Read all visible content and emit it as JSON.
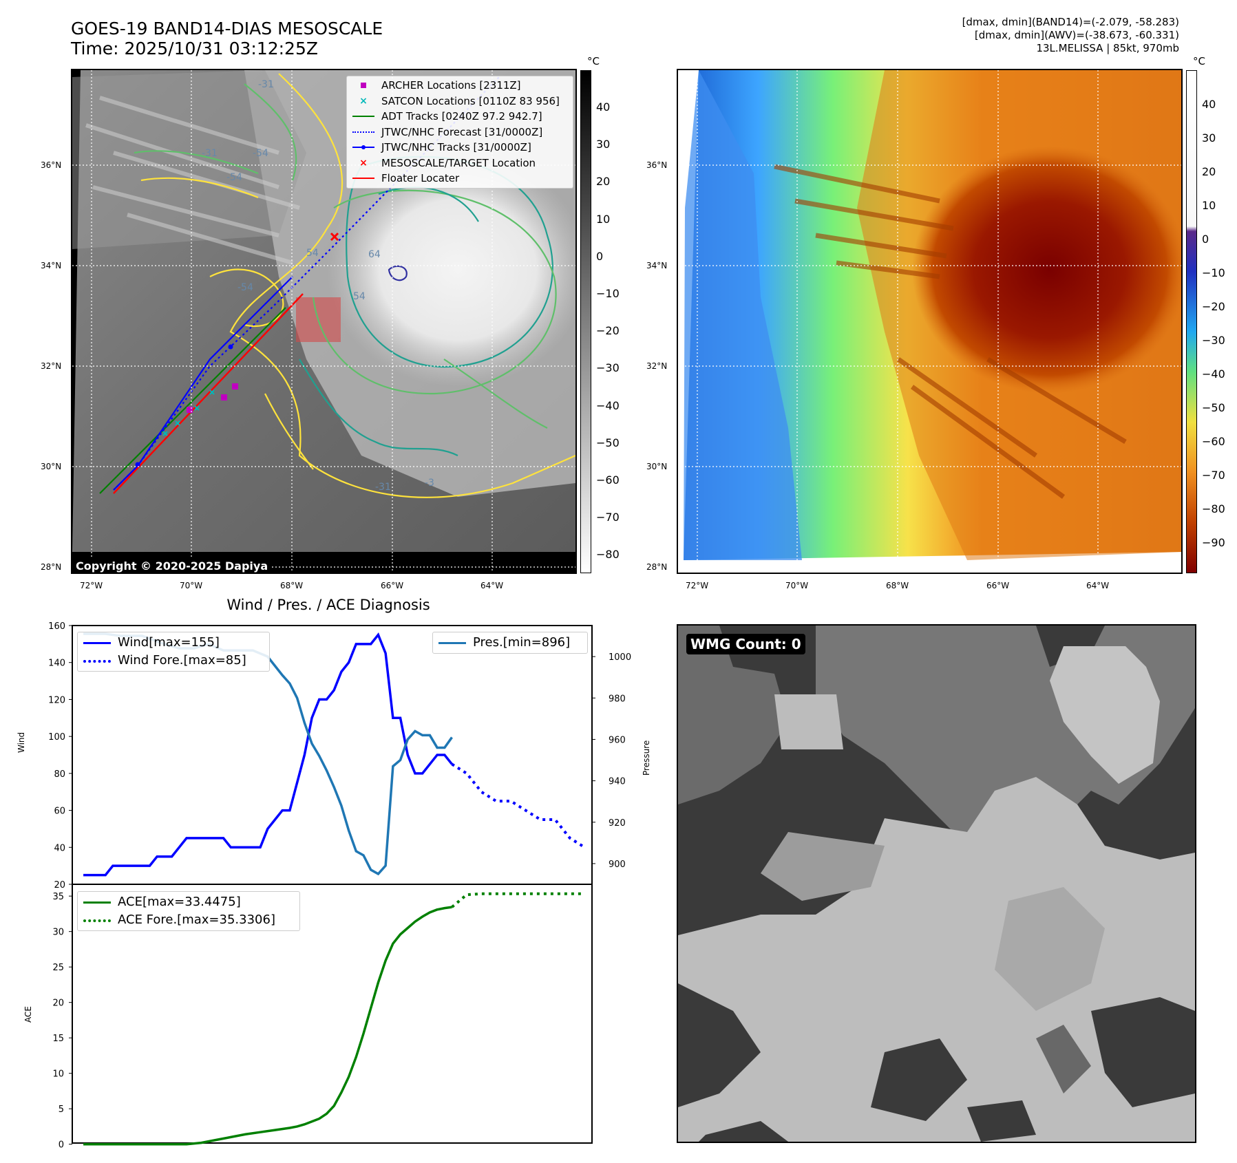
{
  "header": {
    "title_line1": "GOES-19 BAND14-DIAS MESOSCALE",
    "title_line2": "Time: 2025/10/31 03:12:25Z",
    "info_line1": "[dmax, dmin](BAND14)=(-2.079, -58.283)",
    "info_line2": "[dmax, dmin](AWV)=(-38.673, -60.331)",
    "info_line3": "13L.MELISSA | 85kt, 970mb"
  },
  "ir_panel": {
    "unit": "°C",
    "colorbar_ticks": [
      "40",
      "30",
      "20",
      "10",
      "0",
      "−10",
      "−20",
      "−30",
      "−40",
      "−50",
      "−60",
      "−70",
      "−80"
    ],
    "lat_labels": [
      "36°N",
      "34°N",
      "32°N",
      "30°N",
      "28°N"
    ],
    "lon_labels": [
      "72°W",
      "70°W",
      "68°W",
      "66°W",
      "64°W"
    ],
    "contour_labels": [
      "-31",
      "-31",
      "-54",
      "-54",
      "54",
      "54",
      "64",
      "-31",
      "-3"
    ],
    "copyright": "Copyright © 2020-2025 Dapiya",
    "legend": [
      {
        "label": "ARCHER Locations [2311Z]",
        "color": "#c000c0",
        "symbol": "square"
      },
      {
        "label": "SATCON Locations [0110Z 83 956]",
        "color": "#00b8b8",
        "symbol": "x"
      },
      {
        "label": "ADT Tracks [0240Z 97.2 942.7]",
        "color": "#008000",
        "symbol": "line"
      },
      {
        "label": "JTWC/NHC Forecast [31/0000Z]",
        "color": "#0000ff",
        "symbol": "dotted"
      },
      {
        "label": "JTWC/NHC Tracks [31/0000Z]",
        "color": "#0000ff",
        "symbol": "line-dot"
      },
      {
        "label": "MESOSCALE/TARGET Location",
        "color": "#ff0000",
        "symbol": "x"
      },
      {
        "label": "Floater Locater",
        "color": "#ff0000",
        "symbol": "line"
      }
    ]
  },
  "wv_panel": {
    "unit": "°C",
    "colorbar_ticks": [
      "40",
      "30",
      "20",
      "10",
      "0",
      "−10",
      "−20",
      "−30",
      "−40",
      "−50",
      "−60",
      "−70",
      "−80",
      "−90"
    ],
    "lat_labels": [
      "36°N",
      "34°N",
      "32°N",
      "30°N",
      "28°N"
    ],
    "lon_labels": [
      "72°W",
      "70°W",
      "68°W",
      "66°W",
      "64°W"
    ]
  },
  "wmg_panel": {
    "badge": "WMG Count: 0"
  },
  "chart_data": [
    {
      "type": "line",
      "title": "Wind / Pres. / ACE Diagnosis",
      "ylabel": "Wind",
      "y2label": "Pressure",
      "ylim": [
        20,
        160
      ],
      "y2lim": [
        890,
        1015
      ],
      "yticks": [
        20,
        40,
        60,
        80,
        100,
        120,
        140,
        160
      ],
      "y2ticks": [
        900,
        920,
        940,
        960,
        980,
        1000
      ],
      "series": [
        {
          "name": "Wind[max=155]",
          "color": "#0000ff",
          "style": "solid",
          "x": [
            0,
            2,
            3,
            4,
            5,
            6,
            7,
            8,
            9,
            10,
            11,
            12,
            13,
            14,
            15,
            16,
            17,
            18,
            19,
            20,
            21,
            22,
            23,
            24,
            25,
            26,
            27,
            28,
            29,
            30,
            31,
            32,
            33,
            34,
            35,
            36,
            37,
            38,
            39,
            40,
            41,
            42,
            43,
            44,
            45,
            46,
            47,
            48,
            49,
            50
          ],
          "values": [
            25,
            25,
            25,
            30,
            30,
            30,
            30,
            30,
            30,
            35,
            35,
            35,
            40,
            45,
            45,
            45,
            45,
            45,
            45,
            40,
            40,
            40,
            40,
            40,
            50,
            55,
            60,
            60,
            75,
            90,
            110,
            120,
            120,
            125,
            135,
            140,
            150,
            150,
            150,
            155,
            145,
            110,
            110,
            90,
            80,
            80,
            85,
            90,
            90,
            85
          ]
        },
        {
          "name": "Wind Fore.[max=85]",
          "color": "#0000ff",
          "style": "dotted",
          "x": [
            50,
            52,
            54,
            56,
            58,
            60,
            62,
            64,
            66,
            68
          ],
          "values": [
            85,
            80,
            70,
            65,
            65,
            60,
            55,
            55,
            45,
            40
          ]
        },
        {
          "name": "Pres.[min=896]",
          "color": "#1f77b4",
          "style": "solid",
          "axis": "right",
          "x": [
            0,
            3,
            5,
            8,
            11,
            13,
            15,
            17,
            19,
            21,
            23,
            25,
            27,
            28,
            29,
            30,
            31,
            32,
            33,
            34,
            35,
            36,
            37,
            38,
            39,
            40,
            41,
            42,
            43,
            44,
            45,
            46,
            47,
            48,
            49,
            50
          ],
          "values": [
            1011,
            1011,
            1010,
            1010,
            1006,
            1004,
            1004,
            1006,
            1003,
            1003,
            1003,
            1000,
            991,
            987,
            980,
            968,
            958,
            952,
            945,
            937,
            928,
            916,
            906,
            904,
            897,
            895,
            899,
            947,
            950,
            960,
            964,
            962,
            962,
            956,
            956,
            961
          ]
        }
      ]
    },
    {
      "type": "line",
      "ylabel": "ACE",
      "ylim": [
        -1,
        35.5
      ],
      "yticks": [
        0,
        5,
        10,
        15,
        20,
        25,
        30,
        35
      ],
      "series": [
        {
          "name": "ACE[max=33.4475]",
          "color": "#008000",
          "style": "solid",
          "x": [
            0,
            2,
            4,
            6,
            8,
            10,
            12,
            14,
            16,
            18,
            20,
            22,
            24,
            26,
            28,
            29,
            30,
            31,
            32,
            33,
            34,
            35,
            36,
            37,
            38,
            39,
            40,
            41,
            42,
            43,
            44,
            45,
            46,
            47,
            48,
            49,
            50
          ],
          "values": [
            0,
            0,
            0,
            0,
            0,
            0,
            0,
            0,
            0.2,
            0.6,
            1.0,
            1.4,
            1.7,
            2.0,
            2.3,
            2.5,
            2.8,
            3.2,
            3.6,
            4.3,
            5.4,
            7.3,
            9.5,
            12.3,
            15.6,
            19.2,
            22.8,
            25.9,
            28.3,
            29.6,
            30.5,
            31.4,
            32.1,
            32.7,
            33.1,
            33.3,
            33.4475
          ]
        },
        {
          "name": "ACE Fore.[max=35.3306]",
          "color": "#008000",
          "style": "dotted",
          "x": [
            50,
            52,
            54,
            56,
            58,
            60,
            62,
            64,
            66,
            68
          ],
          "values": [
            33.4475,
            35.2,
            35.33,
            35.33,
            35.33,
            35.33,
            35.33,
            35.33,
            35.33,
            35.33
          ]
        }
      ]
    }
  ]
}
